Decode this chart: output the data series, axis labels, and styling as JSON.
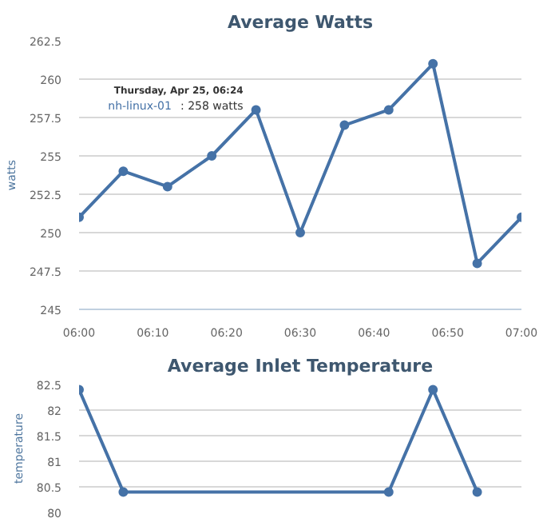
{
  "chart_data": [
    {
      "type": "line",
      "title": "Average Watts",
      "ylabel": "watts",
      "x": [
        6.0,
        6.1,
        6.2,
        6.3,
        6.4,
        6.5,
        6.6,
        6.7,
        6.8,
        6.9,
        7.0
      ],
      "series": [
        {
          "name": "nh-linux-01",
          "color": "#4572a7",
          "values": [
            251,
            254,
            253,
            255,
            258,
            250,
            257,
            258,
            261,
            248,
            251
          ]
        }
      ],
      "xlim": [
        6.0,
        7.0
      ],
      "ylim": [
        245,
        262.5
      ],
      "xticks": [
        {
          "value": 6.0,
          "label": "06:00"
        },
        {
          "value": 6.1667,
          "label": "06:10"
        },
        {
          "value": 6.3333,
          "label": "06:20"
        },
        {
          "value": 6.5,
          "label": "06:30"
        },
        {
          "value": 6.6667,
          "label": "06:40"
        },
        {
          "value": 6.8333,
          "label": "06:50"
        },
        {
          "value": 7.0,
          "label": "07:00"
        }
      ],
      "yticks": [
        245,
        247.5,
        250,
        252.5,
        255,
        257.5,
        260,
        262.5
      ],
      "grid": "y",
      "marker": "circle",
      "line_style": "solid",
      "annotations": [
        {
          "text": "Thursday, Apr 25, 06:24",
          "x": 6.4,
          "y": 258
        },
        {
          "text": ": 258 watts",
          "x": 6.4,
          "y": 258
        }
      ]
    },
    {
      "type": "line",
      "title": "Average Inlet Temperature",
      "ylabel": "temperature",
      "x": [
        6.0,
        6.1,
        6.7,
        6.8,
        6.9
      ],
      "series": [
        {
          "color": "#4572a7",
          "values": [
            82.4,
            80.4,
            80.4,
            82.4,
            80.4
          ]
        }
      ],
      "xlim": [
        6.0,
        7.0
      ],
      "ylim": [
        80,
        82.5
      ],
      "yticks": [
        80,
        80.5,
        81,
        81.5,
        82,
        82.5
      ],
      "tick_labels": "y",
      "grid": "y",
      "marker": "circle",
      "line_style": "solid"
    }
  ]
}
